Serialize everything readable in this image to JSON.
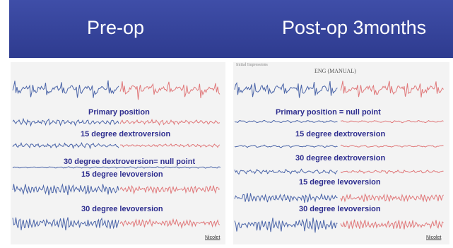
{
  "banner": {
    "left_title": "Pre-op",
    "right_title": "Post-op 3months",
    "color": "#3b4aa3"
  },
  "left_panel": {
    "labels": [
      "Primary position",
      "15 degree dextroversion",
      "30 degree dextroversion= null point",
      "15 degree levoversion",
      "30 degree levoversion"
    ],
    "footer": "Nicolet"
  },
  "right_panel": {
    "small_header": "Initial Impressions",
    "header": "ENG (MANUAL)",
    "labels": [
      "Primary position = null point",
      "15 degree dextroversion",
      "30 degree dextroversion",
      "15 degree levoversion",
      "30 degree levoversion"
    ],
    "footer": "Nicolet"
  },
  "colors": {
    "trace_blue": "#4a64a8",
    "trace_red": "#e0787a",
    "label": "#2d2d8f"
  }
}
